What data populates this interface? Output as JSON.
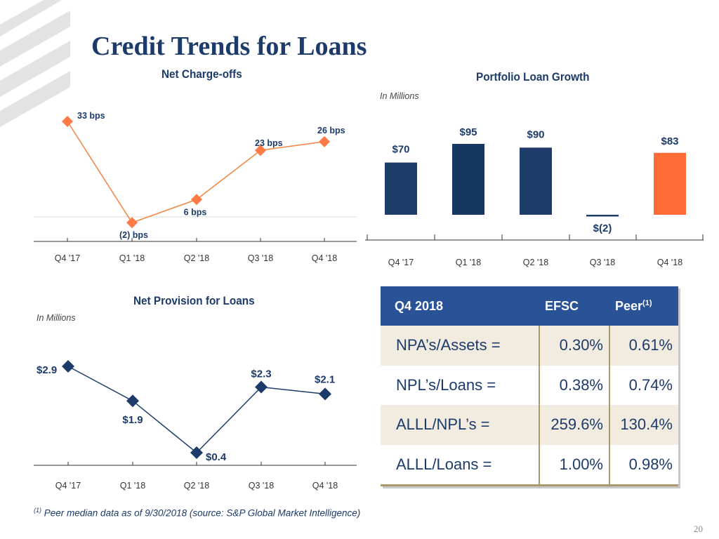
{
  "title": "Credit Trends for Loans",
  "brand_colors": {
    "navy": "#1d3b6a",
    "blue": "#2a5296",
    "orange": "#ff6b35",
    "tan": "#f1ebe0"
  },
  "chart_data": [
    {
      "id": "net-charge-offs",
      "type": "line",
      "title": "Net Charge-offs",
      "categories": [
        "Q4 '17",
        "Q1 '18",
        "Q2 '18",
        "Q3 '18",
        "Q4 '18"
      ],
      "values": [
        33,
        -2,
        6,
        23,
        26
      ],
      "labels": [
        "33 bps",
        "(2) bps",
        "6 bps",
        "23 bps",
        "26 bps"
      ],
      "unit": "bps",
      "color": "#f08a4b"
    },
    {
      "id": "portfolio-loan-growth",
      "type": "bar",
      "title": "Portfolio Loan Growth",
      "subtitle": "In Millions",
      "categories": [
        "Q4 '17",
        "Q1 '18",
        "Q2 '18",
        "Q3 '18",
        "Q4 '18"
      ],
      "values": [
        70,
        95,
        90,
        -2,
        83
      ],
      "labels": [
        "$70",
        "$95",
        "$90",
        "$(2)",
        "$83"
      ],
      "colors": [
        "#1e3d6b",
        "#173763",
        "#1e3d6b",
        "#1e3d6b",
        "#ff6b35"
      ]
    },
    {
      "id": "net-provision-for-loans",
      "type": "line",
      "title": "Net Provision for Loans",
      "subtitle": "In Millions",
      "categories": [
        "Q4 '17",
        "Q1 '18",
        "Q2 '18",
        "Q3 '18",
        "Q4 '18"
      ],
      "values": [
        2.9,
        1.9,
        0.4,
        2.3,
        2.1
      ],
      "labels": [
        "$2.9",
        "$1.9",
        "$0.4",
        "$2.3",
        "$2.1"
      ],
      "color": "#1d3b6a"
    },
    {
      "id": "credit-metrics",
      "type": "table",
      "header": [
        "Q4 2018",
        "EFSC",
        "Peer"
      ],
      "header_sup": "(1)",
      "rows": [
        [
          "NPA’s/Assets =",
          "0.30%",
          "0.61%"
        ],
        [
          "NPL’s/Loans  =",
          "0.38%",
          "0.74%"
        ],
        [
          "ALLL/NPL’s    =",
          "259.6%",
          "130.4%"
        ],
        [
          "ALLL/Loans   =",
          "1.00%",
          "0.98%"
        ]
      ]
    }
  ],
  "footnote": {
    "marker": "(1)",
    "text": "Peer median data as of 9/30/2018 (source: S&P Global Market Intelligence)"
  },
  "page_number": "20"
}
